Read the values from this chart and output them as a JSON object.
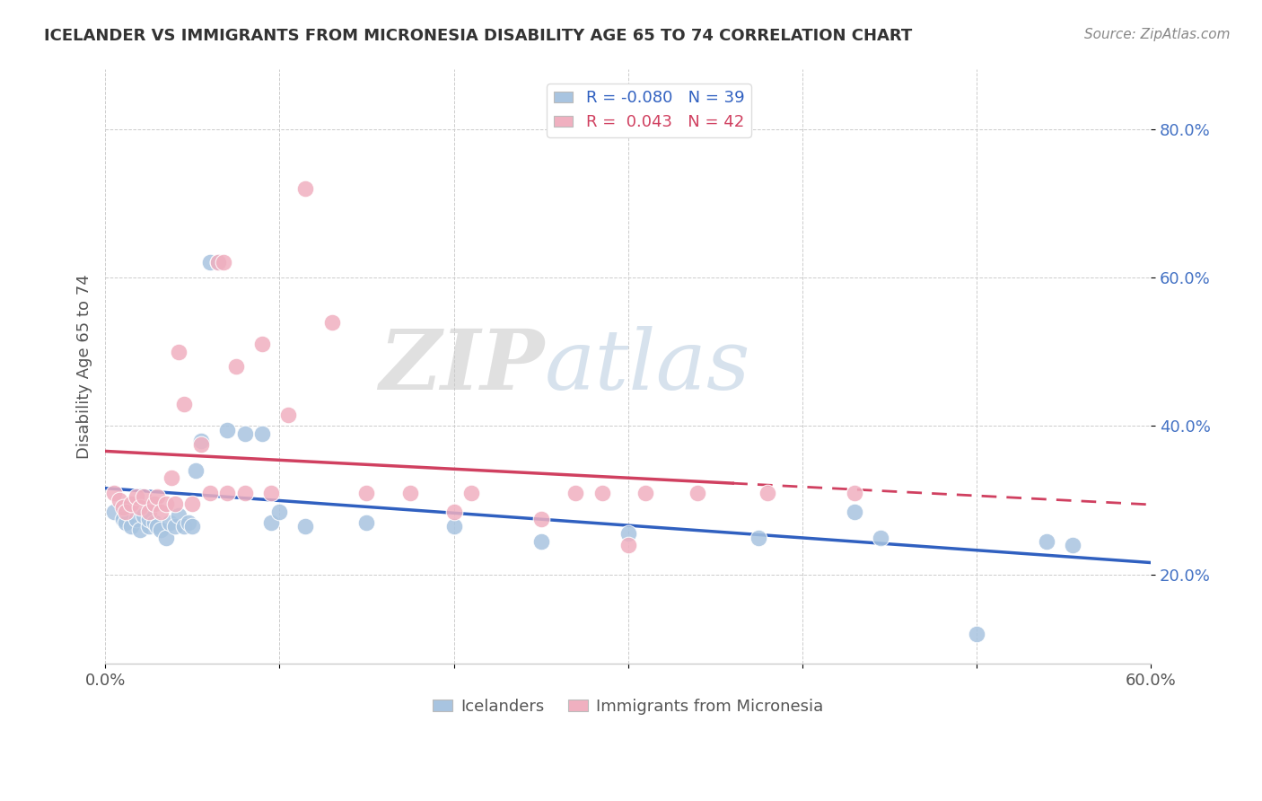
{
  "title": "ICELANDER VS IMMIGRANTS FROM MICRONESIA DISABILITY AGE 65 TO 74 CORRELATION CHART",
  "source": "Source: ZipAtlas.com",
  "ylabel": "Disability Age 65 to 74",
  "xlim": [
    0.0,
    0.6
  ],
  "ylim": [
    0.08,
    0.88
  ],
  "xticks": [
    0.0,
    0.1,
    0.2,
    0.3,
    0.4,
    0.5,
    0.6
  ],
  "xtick_labels": [
    "0.0%",
    "",
    "",
    "",
    "",
    "",
    "60.0%"
  ],
  "yticks": [
    0.2,
    0.4,
    0.6,
    0.8
  ],
  "ytick_labels": [
    "20.0%",
    "40.0%",
    "60.0%",
    "80.0%"
  ],
  "legend_labels": [
    "Icelanders",
    "Immigrants from Micronesia"
  ],
  "legend_R": [
    "-0.080",
    "0.043"
  ],
  "legend_N": [
    "39",
    "42"
  ],
  "blue_color": "#a8c4e0",
  "pink_color": "#f0b0c0",
  "blue_line_color": "#3060c0",
  "pink_line_color": "#d04060",
  "watermark_zip": "ZIP",
  "watermark_atlas": "atlas",
  "blue_x": [
    0.005,
    0.01,
    0.012,
    0.015,
    0.018,
    0.02,
    0.022,
    0.025,
    0.025,
    0.028,
    0.03,
    0.032,
    0.035,
    0.037,
    0.04,
    0.042,
    0.045,
    0.048,
    0.05,
    0.052,
    0.055,
    0.06,
    0.065,
    0.07,
    0.08,
    0.09,
    0.095,
    0.1,
    0.115,
    0.15,
    0.2,
    0.25,
    0.3,
    0.375,
    0.43,
    0.445,
    0.5,
    0.54,
    0.555
  ],
  "blue_y": [
    0.285,
    0.275,
    0.27,
    0.265,
    0.275,
    0.26,
    0.28,
    0.265,
    0.275,
    0.27,
    0.265,
    0.26,
    0.25,
    0.27,
    0.265,
    0.28,
    0.265,
    0.27,
    0.265,
    0.34,
    0.38,
    0.62,
    0.62,
    0.395,
    0.39,
    0.39,
    0.27,
    0.285,
    0.265,
    0.27,
    0.265,
    0.245,
    0.255,
    0.25,
    0.285,
    0.25,
    0.12,
    0.245,
    0.24
  ],
  "pink_x": [
    0.005,
    0.008,
    0.01,
    0.012,
    0.015,
    0.018,
    0.02,
    0.022,
    0.025,
    0.028,
    0.03,
    0.032,
    0.035,
    0.038,
    0.04,
    0.042,
    0.045,
    0.05,
    0.055,
    0.06,
    0.065,
    0.068,
    0.07,
    0.075,
    0.08,
    0.09,
    0.095,
    0.105,
    0.115,
    0.13,
    0.15,
    0.175,
    0.2,
    0.21,
    0.25,
    0.27,
    0.285,
    0.3,
    0.31,
    0.34,
    0.38,
    0.43
  ],
  "pink_y": [
    0.31,
    0.3,
    0.29,
    0.285,
    0.295,
    0.305,
    0.29,
    0.305,
    0.285,
    0.295,
    0.305,
    0.285,
    0.295,
    0.33,
    0.295,
    0.5,
    0.43,
    0.295,
    0.375,
    0.31,
    0.62,
    0.62,
    0.31,
    0.48,
    0.31,
    0.51,
    0.31,
    0.415,
    0.72,
    0.54,
    0.31,
    0.31,
    0.285,
    0.31,
    0.275,
    0.31,
    0.31,
    0.24,
    0.31,
    0.31,
    0.31,
    0.31
  ],
  "pink_line_dash_start": 0.36,
  "pink_line_dash_end": 0.6,
  "blue_line_solid_start": 0.0,
  "blue_line_solid_end": 0.6
}
